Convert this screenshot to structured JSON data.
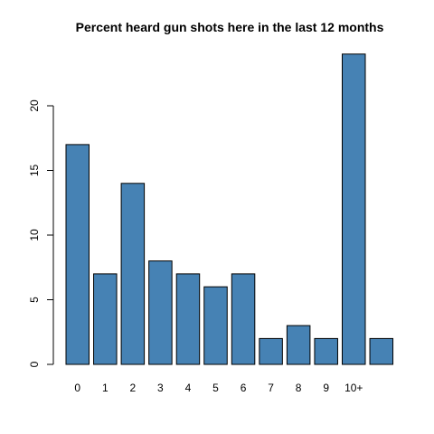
{
  "chart_data": {
    "type": "bar",
    "title": "Percent heard gun shots here in the last 12 months",
    "xlabel": "",
    "ylabel": "",
    "categories": [
      "0",
      "1",
      "2",
      "3",
      "4",
      "5",
      "6",
      "7",
      "8",
      "9",
      "10+",
      ""
    ],
    "values": [
      17,
      7,
      14,
      8,
      7,
      6,
      7,
      2,
      3,
      2,
      24,
      2
    ],
    "ylim": [
      0,
      24
    ],
    "yticks": [
      0,
      5,
      10,
      15,
      20
    ],
    "bar_color": "#4682b4",
    "grid": false
  }
}
